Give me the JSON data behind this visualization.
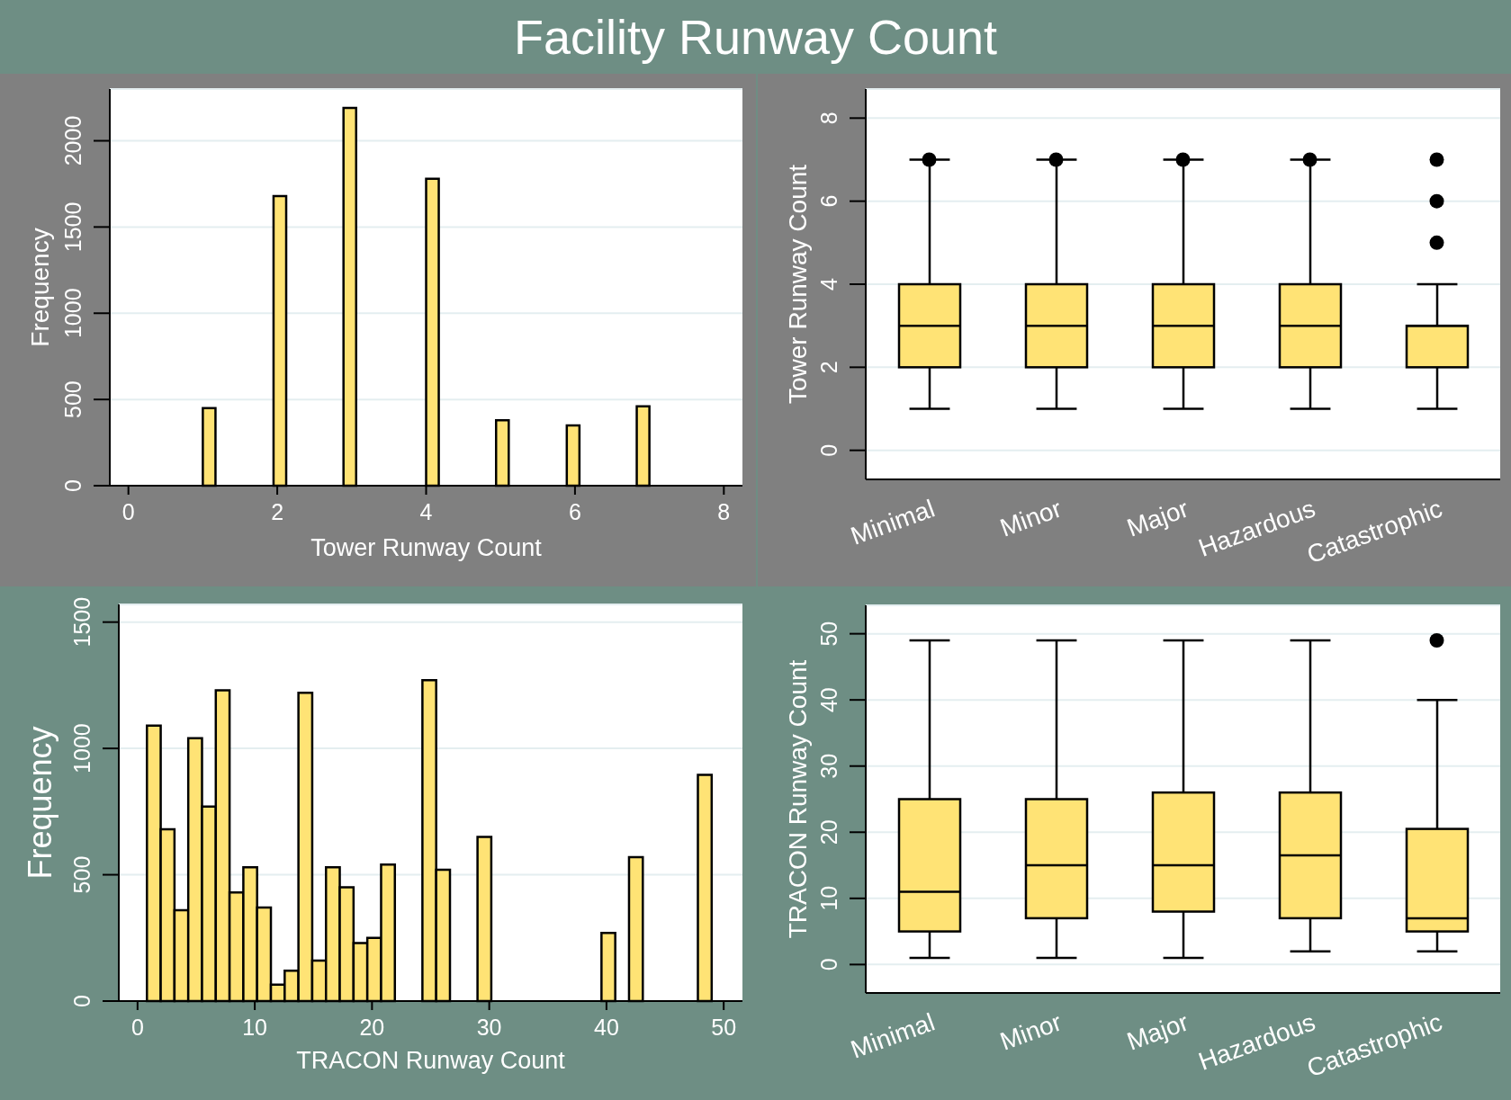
{
  "chart_data": [
    {
      "type": "histogram",
      "title": "Facility Runway Count",
      "xlabel": "Tower Runway Count",
      "ylabel": "Frequency",
      "color": "#ffe375",
      "bins": [
        1.0,
        1.17,
        1.95,
        2.12,
        2.89,
        3.06,
        4.0,
        4.17,
        4.94,
        5.11,
        5.89,
        6.06,
        6.83,
        7.0
      ],
      "values": [
        450,
        0,
        1680,
        0,
        2190,
        0,
        1780,
        0,
        380,
        0,
        350,
        0,
        460
      ],
      "xlim": [
        -0.25,
        8.25
      ],
      "xticks": [
        0,
        2,
        4,
        6,
        8
      ],
      "ylim": [
        0,
        2300
      ],
      "yticks": [
        0,
        500,
        1000,
        1500,
        2000
      ],
      "grid": "y"
    },
    {
      "type": "box",
      "ylabel": "Tower Runway Count",
      "color": "#ffe375",
      "categories": [
        "Minimal",
        "Minor",
        "Major",
        "Hazardous",
        "Catastrophic"
      ],
      "boxes": [
        {
          "low": 1,
          "q1": 2,
          "median": 3,
          "q3": 4,
          "high": 7,
          "outliers": [
            7
          ]
        },
        {
          "low": 1,
          "q1": 2,
          "median": 3,
          "q3": 4,
          "high": 7,
          "outliers": [
            7
          ]
        },
        {
          "low": 1,
          "q1": 2,
          "median": 3,
          "q3": 4,
          "high": 7,
          "outliers": [
            7
          ]
        },
        {
          "low": 1,
          "q1": 2,
          "median": 3,
          "q3": 4,
          "high": 7,
          "outliers": [
            7
          ]
        },
        {
          "low": 1,
          "q1": 2,
          "median": 3,
          "q3": 3,
          "high": 4,
          "outliers": [
            5,
            6,
            7
          ]
        }
      ],
      "ylim": [
        -0.7,
        8.7
      ],
      "yticks": [
        0,
        2,
        4,
        6,
        8
      ],
      "grid": "y"
    },
    {
      "type": "histogram",
      "xlabel": "TRACON Runway Count",
      "ylabel": "Frequency",
      "color": "#ffe375",
      "bins": [
        0.8,
        1.975,
        3.15,
        4.325,
        5.5,
        6.675,
        7.85,
        9.025,
        10.2,
        11.375,
        12.55,
        13.725,
        14.9,
        16.075,
        17.25,
        18.425,
        19.6,
        20.775,
        21.95,
        23.125,
        24.3,
        25.475,
        26.65,
        27.825,
        29,
        30.175,
        31.35,
        32.525,
        33.7,
        34.875,
        36.05,
        37.225,
        38.4,
        39.575,
        40.75,
        41.925,
        43.1,
        44.275,
        45.45,
        46.625,
        47.8,
        48.975
      ],
      "values": [
        1090,
        680,
        360,
        1040,
        770,
        1230,
        430,
        530,
        370,
        65,
        120,
        1220,
        160,
        530,
        450,
        230,
        250,
        540,
        0,
        0,
        1270,
        520,
        0,
        0,
        650,
        0,
        0,
        0,
        0,
        0,
        0,
        0,
        0,
        270,
        0,
        570,
        0,
        0,
        0,
        0,
        895
      ],
      "xlim": [
        -1.6,
        51.6
      ],
      "xticks": [
        0,
        10,
        20,
        30,
        40,
        50
      ],
      "ylim": [
        0,
        1570
      ],
      "yticks": [
        0,
        500,
        1000,
        1500
      ],
      "grid": "y"
    },
    {
      "type": "box",
      "ylabel": "TRACON Runway Count",
      "color": "#ffe375",
      "categories": [
        "Minimal",
        "Minor",
        "Major",
        "Hazardous",
        "Catastrophic"
      ],
      "boxes": [
        {
          "low": 1,
          "q1": 5,
          "median": 11,
          "q3": 25,
          "high": 49
        },
        {
          "low": 1,
          "q1": 7,
          "median": 15,
          "q3": 25,
          "high": 49
        },
        {
          "low": 1,
          "q1": 8,
          "median": 15,
          "q3": 26,
          "high": 49
        },
        {
          "low": 2,
          "q1": 7,
          "median": 16.5,
          "q3": 26,
          "high": 49
        },
        {
          "low": 2,
          "q1": 5,
          "median": 7,
          "q3": 20.5,
          "high": 40,
          "outliers": [
            49
          ]
        }
      ],
      "ylim": [
        -4.3,
        54.3
      ],
      "yticks": [
        0,
        10,
        20,
        30,
        40,
        50
      ],
      "grid": "y"
    }
  ]
}
